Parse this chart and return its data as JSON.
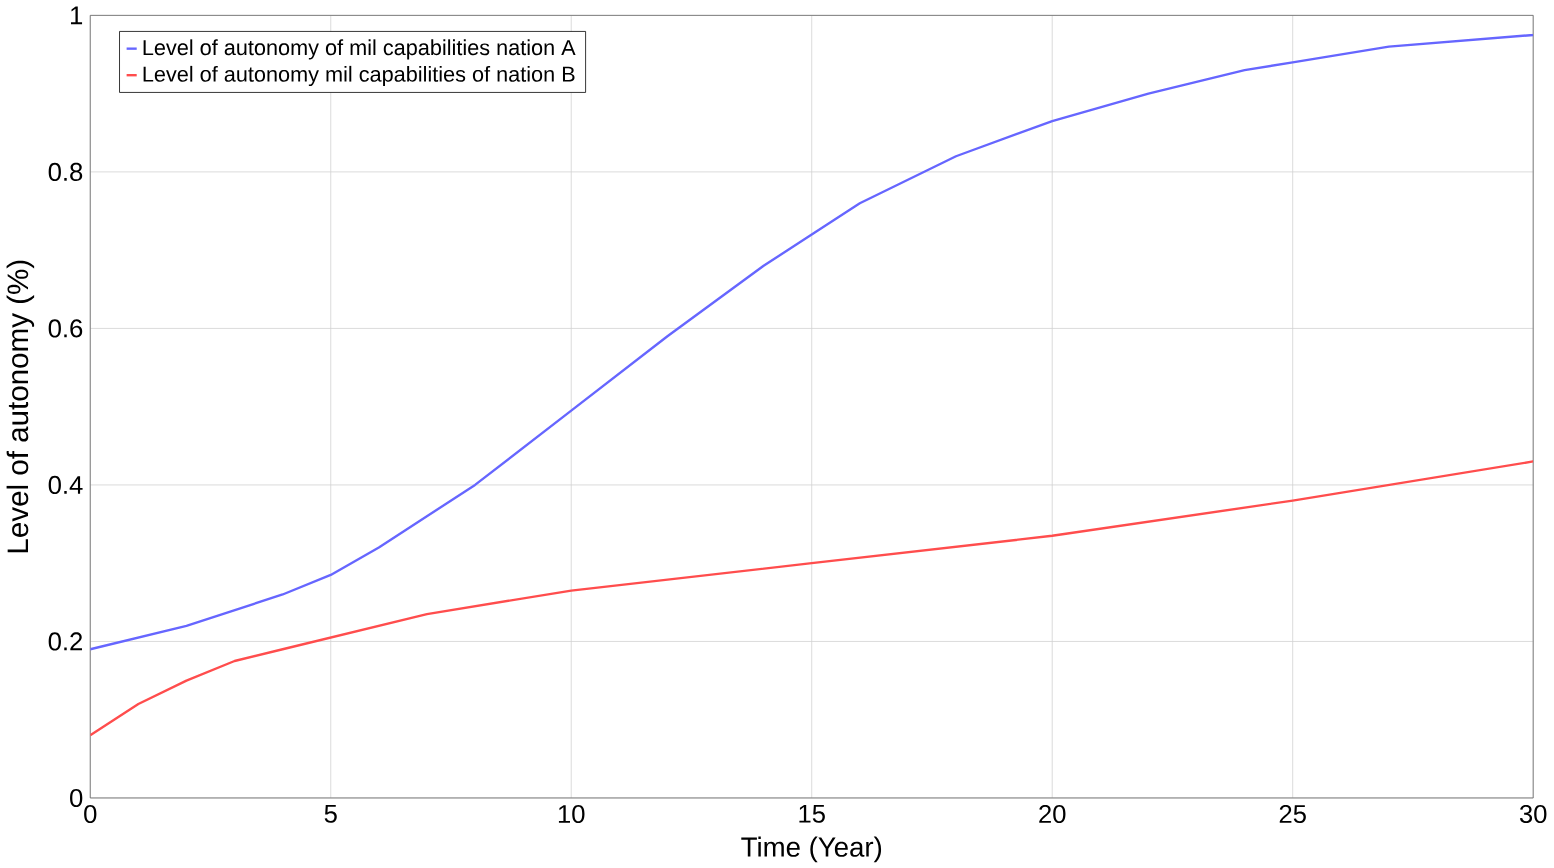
{
  "chart_data": {
    "type": "line",
    "xlabel": "Time (Year)",
    "ylabel": "Level of autonomy (%)",
    "xlim": [
      0,
      30
    ],
    "xticks": [
      0,
      5,
      10,
      15,
      20,
      25,
      30
    ],
    "ylim": [
      0,
      1
    ],
    "yticks": [
      0,
      0.2,
      0.4,
      0.6,
      0.8,
      1
    ],
    "grid": true,
    "legend": "top left",
    "marker": "none",
    "line_style": "solid",
    "series": [
      {
        "name": "Level of autonomy of mil capabilities nation A",
        "color": "#6666ff",
        "x": [
          0,
          2,
          4,
          5,
          6,
          8,
          10,
          12,
          14,
          15,
          16,
          18,
          20,
          22,
          24,
          25,
          27,
          30
        ],
        "values": [
          0.19,
          0.22,
          0.26,
          0.285,
          0.32,
          0.4,
          0.495,
          0.59,
          0.68,
          0.72,
          0.76,
          0.82,
          0.865,
          0.9,
          0.93,
          0.94,
          0.96,
          0.975
        ]
      },
      {
        "name": "Level of autonomy mil capabilities of nation B",
        "color": "#ff4d4d",
        "x": [
          0,
          1,
          2,
          3,
          4,
          5,
          7,
          10,
          15,
          20,
          25,
          30
        ],
        "values": [
          0.08,
          0.12,
          0.15,
          0.175,
          0.19,
          0.205,
          0.235,
          0.265,
          0.3,
          0.335,
          0.38,
          0.43
        ]
      }
    ]
  }
}
